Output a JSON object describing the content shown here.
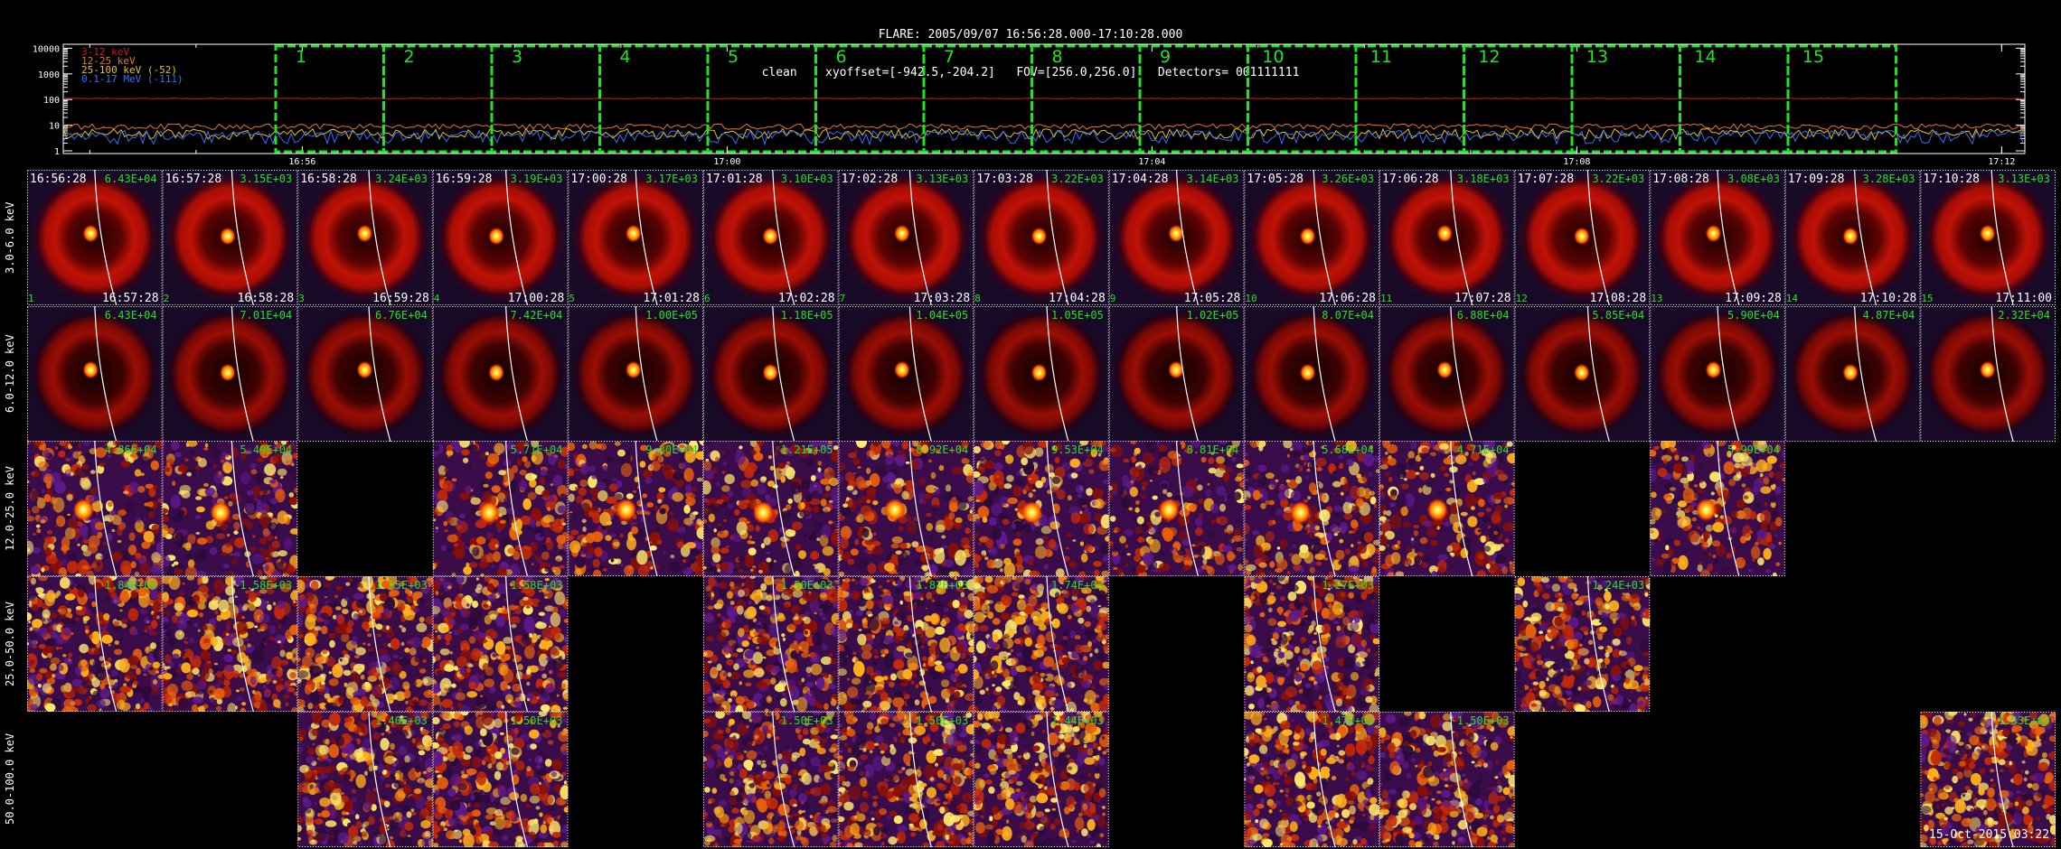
{
  "header": {
    "line1": "FLARE: 2005/09/07 16:56:28.000-17:10:28.000",
    "line2": "clean    xyoffset=[-942.5,-204.2]   FOV=[256.0,256.0]   Detectors= 001111111"
  },
  "lightcurve": {
    "y_ticks": [
      "10000",
      "1000",
      "100",
      "10",
      "1"
    ],
    "x_ticks": [
      "16:56",
      "17:00",
      "17:04",
      "17:08",
      "17:12"
    ],
    "legend": [
      {
        "label": "3-12 keV",
        "color": "#d11a1a"
      },
      {
        "label": "12-25 keV",
        "color": "#e8781a"
      },
      {
        "label": "25-100 keV (-52)",
        "color": "#e8c11a"
      },
      {
        "label": "0.1-17 MeV (-111)",
        "color": "#3a6cff"
      }
    ],
    "intervals": [
      "1",
      "2",
      "3",
      "4",
      "5",
      "6",
      "7",
      "8",
      "9",
      "10",
      "11",
      "12",
      "13",
      "14",
      "15"
    ]
  },
  "bands": [
    "3.0-6.0 keV",
    "6.0-12.0 keV",
    "12.0-25.0 keV",
    "25.0-50.0 keV",
    "50.0-100.0 keV"
  ],
  "start_times": [
    "16:56:28",
    "16:57:28",
    "16:58:28",
    "16:59:28",
    "17:00:28",
    "17:01:28",
    "17:02:28",
    "17:03:28",
    "17:04:28",
    "17:05:28",
    "17:06:28",
    "17:07:28",
    "17:08:28",
    "17:09:28",
    "17:10:28"
  ],
  "end_times": [
    "16:57:28",
    "16:58:28",
    "16:59:28",
    "17:00:28",
    "17:01:28",
    "17:02:28",
    "17:03:28",
    "17:04:28",
    "17:05:28",
    "17:06:28",
    "17:07:28",
    "17:08:28",
    "17:09:28",
    "17:10:28",
    "17:11:00"
  ],
  "maxima": [
    [
      "6.43E+04",
      "3.15E+03",
      "3.24E+03",
      "3.19E+03",
      "3.17E+03",
      "3.10E+03",
      "3.13E+03",
      "3.22E+03",
      "3.14E+03",
      "3.26E+03",
      "3.18E+03",
      "3.22E+03",
      "3.08E+03",
      "3.28E+03",
      "3.13E+03"
    ],
    [
      "6.43E+04",
      "7.01E+04",
      "6.76E+04",
      "7.42E+04",
      "1.00E+05",
      "1.18E+05",
      "1.04E+05",
      "1.05E+05",
      "1.02E+05",
      "8.07E+04",
      "6.88E+04",
      "5.85E+04",
      "5.90E+04",
      "4.87E+04",
      "2.32E+04"
    ],
    [
      "4.86E+04",
      "5.49E+04",
      null,
      "5.71E+04",
      "9.80E+04",
      "1.21E+05",
      "8.92E+04",
      "9.53E+04",
      "8.81E+04",
      "5.68E+04",
      "4.71E+04",
      null,
      "5.99E+04",
      null,
      null
    ],
    [
      "1.84E+03",
      "1.58E+03",
      "1.25E+03",
      "1.58E+03",
      null,
      "1.50E+03",
      "1.82E+03",
      "1.74E+03",
      null,
      "1.27E+03",
      null,
      "1.24E+03",
      null,
      null,
      null
    ],
    [
      null,
      null,
      "1.40E+03",
      "1.50E+03",
      null,
      "1.50E+03",
      "1.50E+03",
      "1.44E+03",
      null,
      "1.47E+03",
      "1.50E+03",
      null,
      null,
      null,
      "1.53E+03"
    ]
  ],
  "footer": {
    "stamp": "15-Oct-2015 03:22"
  }
}
